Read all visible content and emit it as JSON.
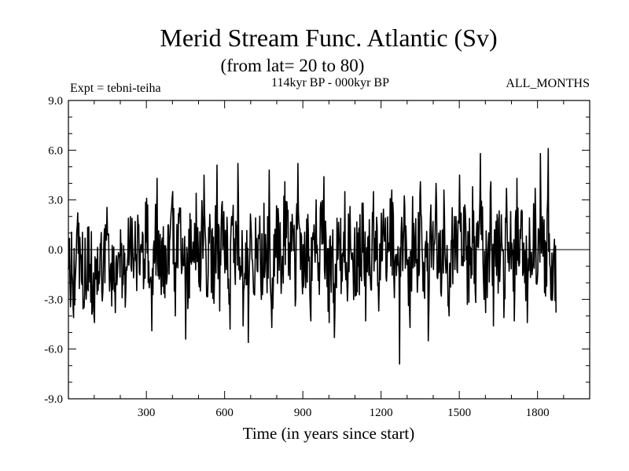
{
  "chart_data": {
    "type": "line",
    "title": "Merid Stream Func. Atlantic (Sv)",
    "subtitle": "(from lat= 20 to 80)",
    "period": "114kyr BP - 000kyr BP",
    "experiment": "Expt = tebni-teiha",
    "months": "ALL_MONTHS",
    "xlabel": "Time (in years since start)",
    "ylabel": "",
    "xlim": [
      1,
      2000
    ],
    "ylim": [
      -9.0,
      9.0
    ],
    "x_ticks": [
      300,
      600,
      900,
      1200,
      1500,
      1800
    ],
    "x_tick_labels": [
      "300",
      "600",
      "900",
      "1200",
      "1500",
      "1800"
    ],
    "y_ticks": [
      -9.0,
      -6.0,
      -3.0,
      0.0,
      3.0,
      6.0,
      9.0
    ],
    "y_tick_labels": [
      "-9.0",
      "-6.0",
      "-3.0",
      "0.0",
      "3.0",
      "6.0",
      "9.0"
    ],
    "zero_line": 0.0,
    "series": [
      {
        "name": "Merid Stream Func. Atlantic",
        "x_start": 1,
        "x_step": 10,
        "values": [
          -1.2,
          -2.8,
          -4.1,
          -0.5,
          1.6,
          -1.9,
          -3.5,
          -2.2,
          -0.8,
          -3.9,
          -4.4,
          -2.7,
          -1.5,
          -3.1,
          -2.0,
          0.9,
          -1.8,
          -2.4,
          -3.8,
          -0.6,
          1.2,
          -2.1,
          -2.6,
          1.9,
          -1.0,
          -1.7,
          -0.3,
          1.5,
          0.2,
          -1.6,
          3.1,
          -2.3,
          -4.9,
          -0.8,
          4.3,
          -1.5,
          0.7,
          -2.9,
          -1.3,
          0.8,
          3.5,
          -4.0,
          -1.1,
          2.5,
          -0.9,
          -5.4,
          -2.5,
          1.8,
          -0.4,
          3.4,
          -1.9,
          1.0,
          4.5,
          -2.8,
          0.4,
          -0.7,
          -2.0,
          5.1,
          -3.7,
          2.9,
          -1.4,
          0.9,
          -4.8,
          1.8,
          -2.1,
          5.2,
          -1.0,
          -4.6,
          0.4,
          -5.6,
          1.5,
          -2.6,
          -0.5,
          0.9,
          -3.0,
          2.8,
          -0.9,
          4.8,
          -4.7,
          -1.6,
          2.2,
          0.1,
          -0.4,
          4.1,
          2.2,
          -1.8,
          1.3,
          -3.4,
          5.2,
          -1.2,
          0.3,
          -2.3,
          1.2,
          -4.3,
          0.6,
          3.0,
          -0.8,
          1.8,
          4.4,
          -1.1,
          -4.4,
          0.2,
          -5.3,
          1.9,
          0.6,
          -1.9,
          3.5,
          -3.1,
          2.6,
          -0.2,
          -2.8,
          1.0,
          -1.6,
          2.8,
          -4.3,
          0.8,
          -2.4,
          3.5,
          -0.6,
          -3.7,
          2.2,
          1.1,
          -1.9,
          0.4,
          3.6,
          -2.9,
          -0.3,
          -6.9,
          1.1,
          2.6,
          -0.6,
          -4.7,
          3.2,
          0.1,
          -1.7,
          4.1,
          -2.5,
          0.5,
          -5.5,
          2.7,
          -1.2,
          4.0,
          1.0,
          -2.8,
          3.6,
          -0.9,
          -4.0,
          0.5,
          2.0,
          -1.2,
          4.5,
          -0.9,
          2.7,
          -3.3,
          -0.9,
          3.8,
          -2.5,
          1.7,
          5.8,
          -0.7,
          -3.8,
          0.4,
          4.1,
          -4.6,
          1.7,
          -0.7,
          2.1,
          -4.1,
          3.7,
          -1.3,
          0.4,
          -4.3,
          4.3,
          -0.8,
          2.3,
          -2.0,
          -4.4,
          0.3,
          -1.1,
          3.7,
          -1.3,
          5.8,
          -0.4,
          -2.8,
          6.1,
          -2.9,
          -0.3,
          -3.8
        ]
      }
    ]
  }
}
